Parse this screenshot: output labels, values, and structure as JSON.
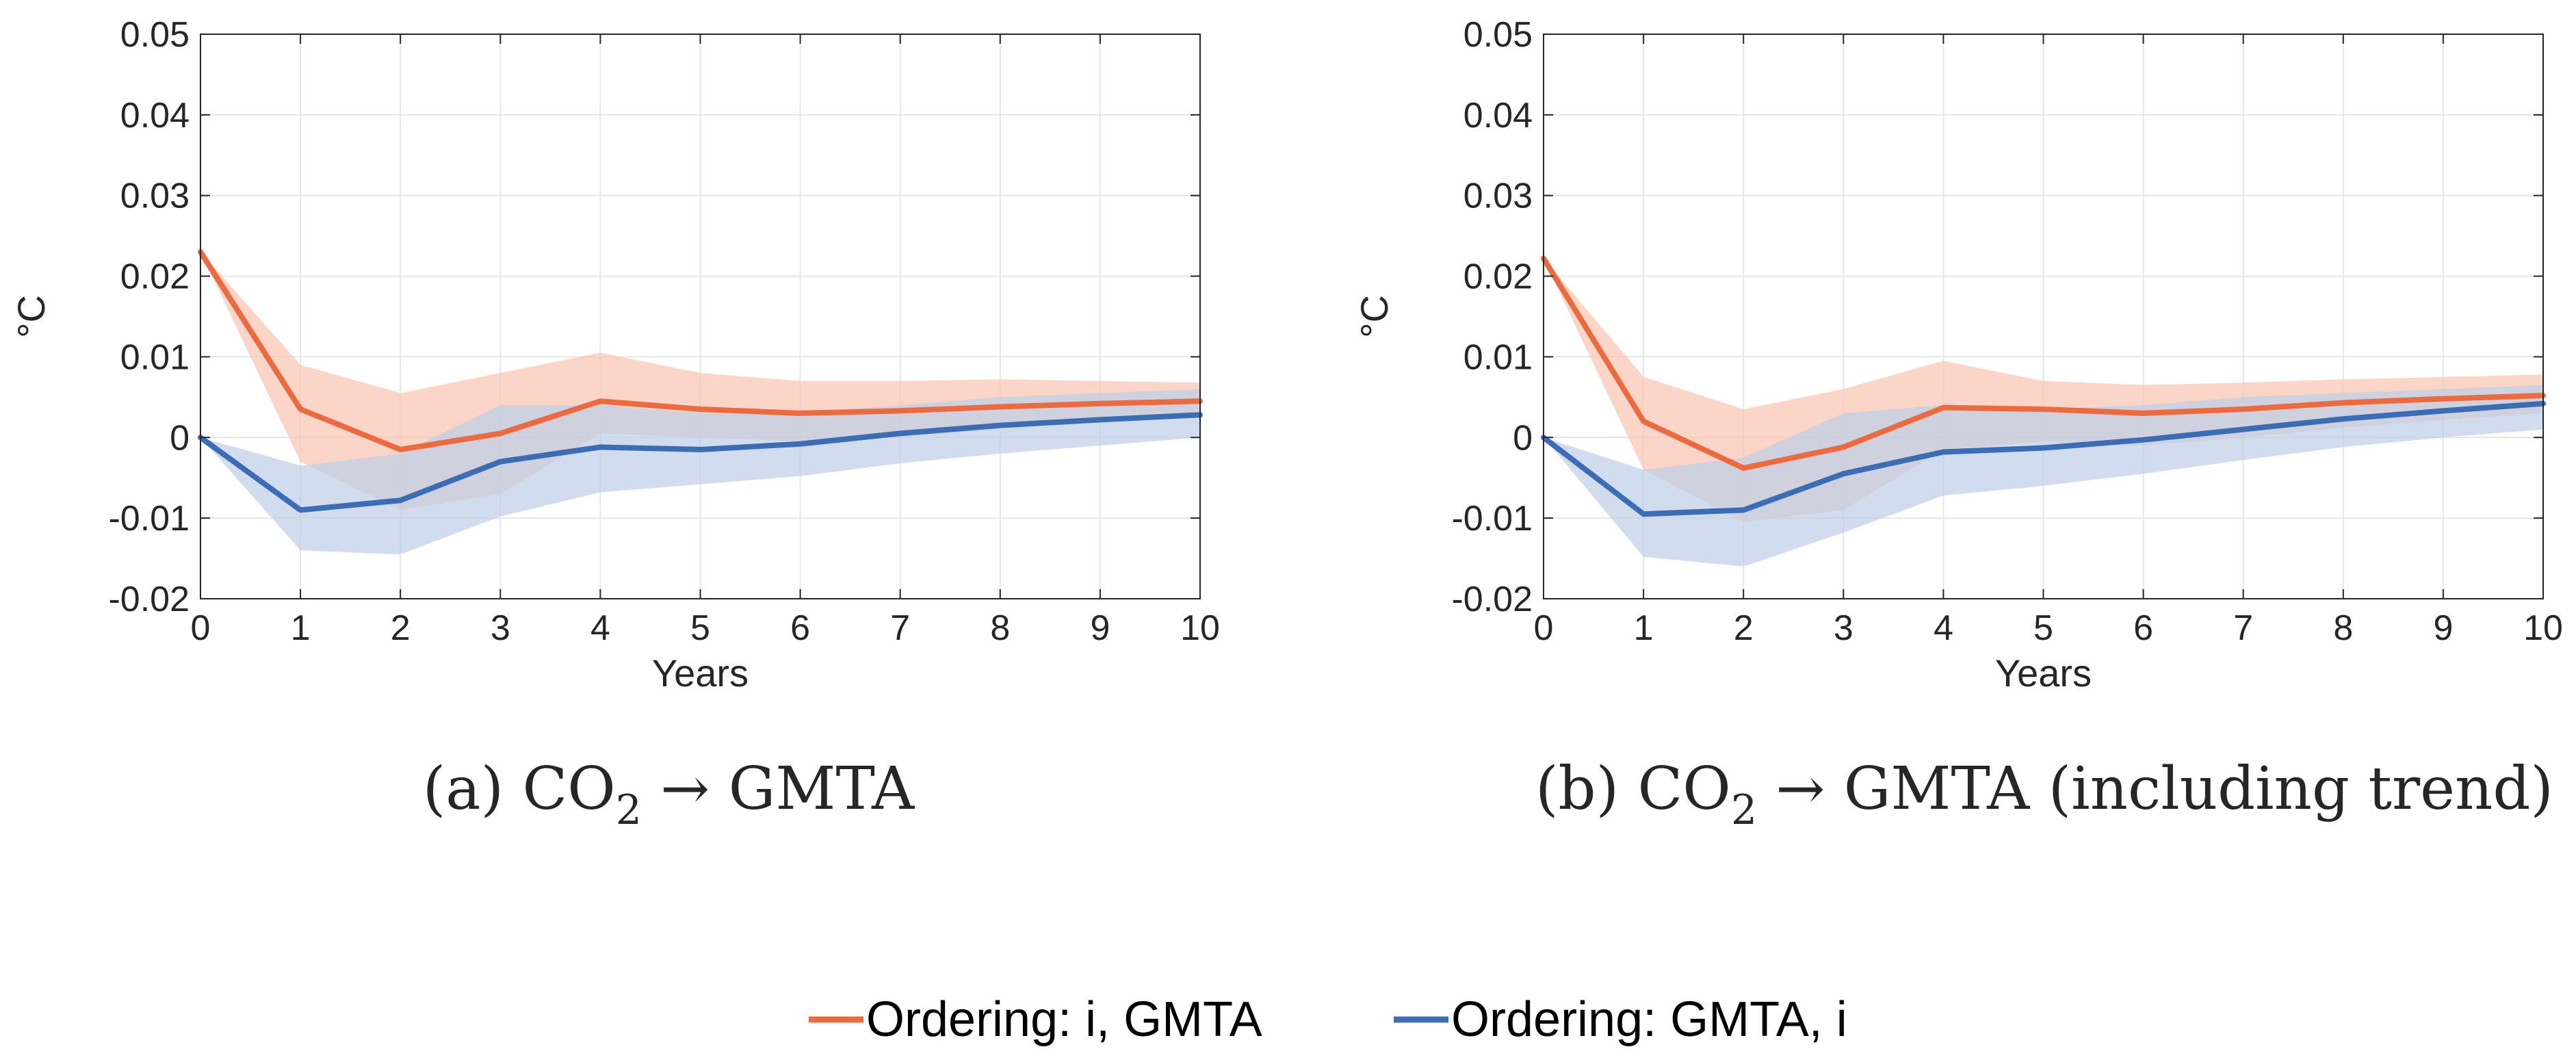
{
  "chart_data": [
    {
      "type": "line",
      "caption": {
        "prefix": "(a) CO",
        "subscript": "2",
        "suffix": " → GMTA"
      },
      "xlabel": "Years",
      "ylabel": "°C",
      "xlim": [
        0,
        10
      ],
      "ylim": [
        -0.02,
        0.05
      ],
      "grid": true,
      "x_ticks": [
        0,
        1,
        2,
        3,
        4,
        5,
        6,
        7,
        8,
        9,
        10
      ],
      "x_tick_labels": [
        "0",
        "1",
        "2",
        "3",
        "4",
        "5",
        "6",
        "7",
        "8",
        "9",
        "10"
      ],
      "y_ticks": [
        -0.02,
        -0.01,
        0,
        0.01,
        0.02,
        0.03,
        0.04,
        0.05
      ],
      "y_tick_labels": [
        "-0.02",
        "-0.01",
        "0",
        "0.01",
        "0.02",
        "0.03",
        "0.04",
        "0.05"
      ],
      "x": [
        0,
        1,
        2,
        3,
        4,
        5,
        6,
        7,
        8,
        9,
        10
      ],
      "series": [
        {
          "name": "Ordering: i, GMTA",
          "color": "#EB6A3F",
          "band_color": "#F8C5B3",
          "values": [
            0.023,
            0.0035,
            -0.0015,
            0.0005,
            0.0045,
            0.0035,
            0.003,
            0.0033,
            0.0038,
            0.0042,
            0.0045
          ],
          "upper": [
            0.023,
            0.009,
            0.0055,
            0.008,
            0.0105,
            0.008,
            0.007,
            0.007,
            0.0072,
            0.007,
            0.0068
          ],
          "lower": [
            0.023,
            -0.003,
            -0.009,
            -0.007,
            0.0005,
            0.0,
            -0.0005,
            0.0,
            0.001,
            0.002,
            0.0025
          ]
        },
        {
          "name": "Ordering: GMTA, i",
          "color": "#3C6DB4",
          "band_color": "#BFD0E8",
          "values": [
            0.0,
            -0.009,
            -0.0078,
            -0.003,
            -0.0012,
            -0.0015,
            -0.0008,
            0.0005,
            0.0015,
            0.0022,
            0.0028
          ],
          "upper": [
            0.0,
            -0.0035,
            -0.002,
            0.004,
            0.004,
            0.003,
            0.003,
            0.004,
            0.005,
            0.0055,
            0.006
          ],
          "lower": [
            0.0,
            -0.014,
            -0.0145,
            -0.0098,
            -0.0068,
            -0.0058,
            -0.0048,
            -0.0032,
            -0.002,
            -0.001,
            0.0
          ]
        }
      ]
    },
    {
      "type": "line",
      "caption": {
        "prefix": "(b) CO",
        "subscript": "2",
        "suffix": " → GMTA (including trend)"
      },
      "xlabel": "Years",
      "ylabel": "°C",
      "xlim": [
        0,
        10
      ],
      "ylim": [
        -0.02,
        0.05
      ],
      "grid": true,
      "x_ticks": [
        0,
        1,
        2,
        3,
        4,
        5,
        6,
        7,
        8,
        9,
        10
      ],
      "x_tick_labels": [
        "0",
        "1",
        "2",
        "3",
        "4",
        "5",
        "6",
        "7",
        "8",
        "9",
        "10"
      ],
      "y_ticks": [
        -0.02,
        -0.01,
        0,
        0.01,
        0.02,
        0.03,
        0.04,
        0.05
      ],
      "y_tick_labels": [
        "-0.02",
        "-0.01",
        "0",
        "0.01",
        "0.02",
        "0.03",
        "0.04",
        "0.05"
      ],
      "x": [
        0,
        1,
        2,
        3,
        4,
        5,
        6,
        7,
        8,
        9,
        10
      ],
      "series": [
        {
          "name": "Ordering: i, GMTA",
          "color": "#EB6A3F",
          "band_color": "#F8C5B3",
          "values": [
            0.0222,
            0.002,
            -0.0038,
            -0.0012,
            0.0037,
            0.0035,
            0.003,
            0.0035,
            0.0043,
            0.0048,
            0.0052
          ],
          "upper": [
            0.0222,
            0.0075,
            0.0035,
            0.006,
            0.0095,
            0.007,
            0.0065,
            0.0068,
            0.0072,
            0.0075,
            0.0078
          ],
          "lower": [
            0.0222,
            -0.004,
            -0.0105,
            -0.009,
            -0.0015,
            -0.0005,
            -0.001,
            0.0,
            0.0012,
            0.0022,
            0.003
          ]
        },
        {
          "name": "Ordering: GMTA, i",
          "color": "#3C6DB4",
          "band_color": "#BFD0E8",
          "values": [
            0.0,
            -0.0095,
            -0.009,
            -0.0045,
            -0.0018,
            -0.0013,
            -0.0003,
            0.001,
            0.0023,
            0.0033,
            0.0042
          ],
          "upper": [
            0.0,
            -0.004,
            -0.0025,
            0.003,
            0.004,
            0.0035,
            0.004,
            0.005,
            0.0055,
            0.006,
            0.0065
          ],
          "lower": [
            0.0,
            -0.0148,
            -0.016,
            -0.0118,
            -0.0072,
            -0.006,
            -0.0045,
            -0.0028,
            -0.0012,
            0.0,
            0.001
          ]
        }
      ]
    }
  ],
  "legend": {
    "position": "bottom-center",
    "entries": [
      {
        "label": "Ordering: i, GMTA",
        "color": "#EB6A3F"
      },
      {
        "label": "Ordering: GMTA, i",
        "color": "#3C6DB4"
      }
    ]
  }
}
